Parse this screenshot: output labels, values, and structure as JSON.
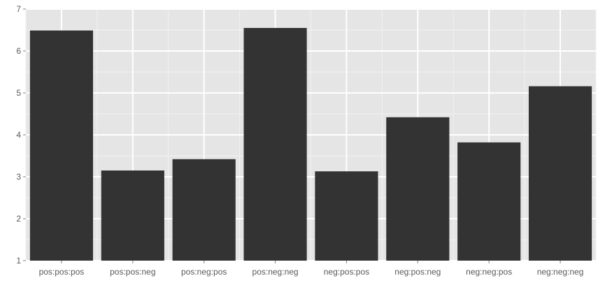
{
  "chart_data": {
    "type": "bar",
    "title": "",
    "xlabel": "",
    "ylabel": "",
    "categories": [
      "pos:pos:pos",
      "pos:pos:neg",
      "pos:neg:pos",
      "pos:neg:neg",
      "neg:pos:pos",
      "neg:pos:neg",
      "neg:neg:pos",
      "neg:neg:neg"
    ],
    "values": [
      6.49,
      3.15,
      3.42,
      6.55,
      3.13,
      4.42,
      3.82,
      5.16
    ],
    "baseline": 1,
    "ylim": [
      1,
      7
    ],
    "yticks": [
      1,
      2,
      3,
      4,
      5,
      6,
      7
    ],
    "grid": true,
    "legend": "none",
    "colors": {
      "bar": "#333333",
      "panel": "#e5e5e5",
      "grid_major": "#ffffff",
      "grid_minor": "#f2f2f2",
      "tick_text": "#5a5a5a"
    }
  }
}
